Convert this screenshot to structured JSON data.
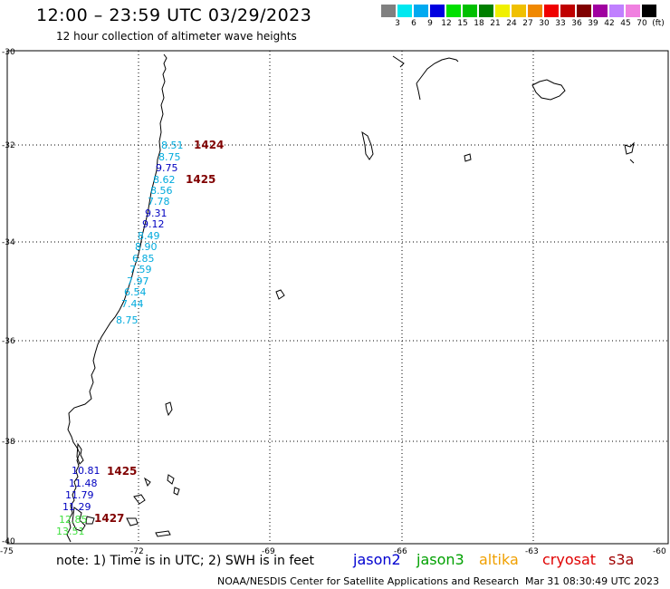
{
  "header": {
    "title": "12:00 – 23:59 UTC 03/29/2023",
    "subtitle": "12 hour collection of altimeter wave heights"
  },
  "colorbar": {
    "colors": [
      "#808080",
      "#00e8f0",
      "#00aaf0",
      "#0000e0",
      "#00e000",
      "#00c000",
      "#008000",
      "#f0f000",
      "#f0c000",
      "#f08800",
      "#f00000",
      "#c00000",
      "#800000",
      "#a000a0",
      "#c080ff",
      "#f080e0",
      "#000000"
    ],
    "labels": [
      "3",
      "6",
      "9",
      "12",
      "15",
      "18",
      "21",
      "24",
      "27",
      "30",
      "33",
      "36",
      "39",
      "42",
      "45",
      "70",
      "(ft)"
    ]
  },
  "axes": {
    "lat_labels": [
      "-30",
      "-32",
      "-34",
      "-36",
      "-38",
      "-40"
    ],
    "lon_labels": [
      "-75",
      "-72",
      "-69",
      "-66",
      "-63",
      "-60"
    ]
  },
  "tracks": [
    {
      "color": "#00aadd",
      "times": [
        {
          "label": "1424"
        },
        {
          "label": "1425"
        }
      ],
      "heights": [
        "8.51",
        "8.75",
        "9.75",
        "8.62",
        "8.56",
        "7.78",
        "9.31",
        "9.12",
        "8.49",
        "8.90",
        "6.85",
        "7.59",
        "7.97",
        "6.54",
        "7.44",
        "8.75"
      ],
      "colors": [
        "#00aadd",
        "#00aadd",
        "#0000c0",
        "#00aadd",
        "#00aadd",
        "#00aadd",
        "#0000c0",
        "#0000c0",
        "#00aadd",
        "#00aadd",
        "#00aadd",
        "#00aadd",
        "#00aadd",
        "#00aadd",
        "#00aadd",
        "#00aadd"
      ]
    },
    {
      "color": "#0000c0",
      "times": [
        {
          "label": "1425"
        },
        {
          "label": "1427"
        }
      ],
      "heights": [
        "10.81",
        "11.48",
        "11.79",
        "11.29",
        "12.85",
        "13.51"
      ],
      "colors": [
        "#0000c0",
        "#0000c0",
        "#0000c0",
        "#0000c0",
        "#40e040",
        "#40e040"
      ]
    }
  ],
  "footer": {
    "note": "note: 1) Time is in UTC; 2) SWH is in feet",
    "satellites": [
      {
        "name": "jason2",
        "color": "#0000d0"
      },
      {
        "name": "jason3",
        "color": "#00a000"
      },
      {
        "name": "altika",
        "color": "#f0a000"
      },
      {
        "name": "cryosat",
        "color": "#e00000"
      },
      {
        "name": "s3a",
        "color": "#a00000"
      }
    ],
    "credit": "NOAA/NESDIS Center for Satellite Applications and Research",
    "timestamp": "Mar 31 08:30:49 UTC 2023"
  }
}
